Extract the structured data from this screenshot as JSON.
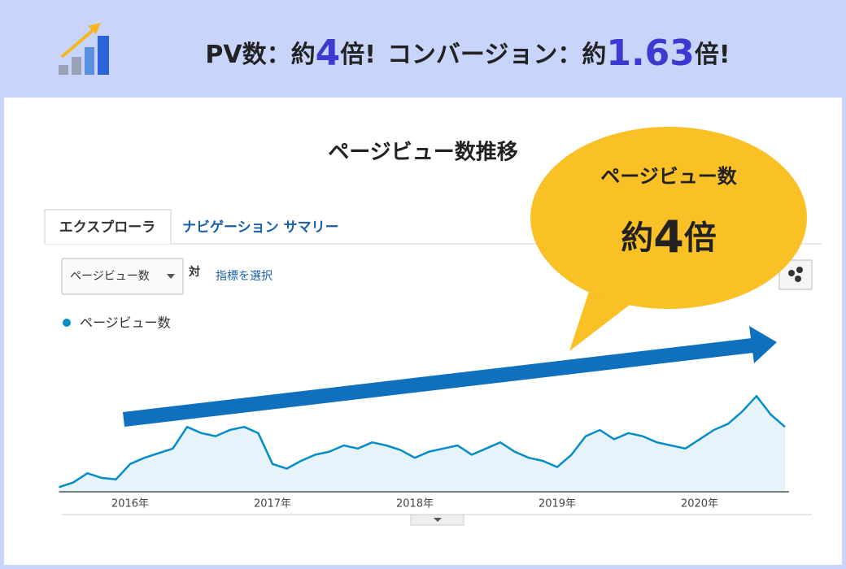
{
  "header": {
    "pv_label": "PV数：約",
    "pv_multiplier": 4,
    "pv_suffix": "倍!",
    "cv_label": "コンバージョン：約",
    "cv_multiplier": 1.63,
    "cv_suffix": "倍!"
  },
  "ui": {
    "tabs": [
      "エクスプローラ",
      "ナビゲーション サマリー"
    ],
    "dropdown": "ページビュー数",
    "vs": "対",
    "select_metric": "指標を選択"
  },
  "callout": {
    "label": "ページビュー数",
    "prefix": "約",
    "multiplier": 4,
    "suffix": "倍"
  },
  "chart_data": {
    "type": "line",
    "title": "ページビュー数推移",
    "categories": [
      null,
      null,
      null,
      null,
      null,
      "2016年",
      null,
      null,
      null,
      null,
      null,
      null,
      null,
      null,
      null,
      "2017年",
      null,
      null,
      null,
      null,
      null,
      null,
      null,
      null,
      null,
      "2018年",
      null,
      null,
      null,
      null,
      null,
      null,
      null,
      null,
      null,
      "2019年",
      null,
      null,
      null,
      null,
      null,
      null,
      null,
      null,
      null,
      "2020年",
      null,
      null,
      null,
      null,
      null,
      null
    ],
    "series": [
      {
        "name": "ページビュー数",
        "color": "#058dc7",
        "values": [
          3,
          6,
          12,
          9,
          8,
          18,
          22,
          25,
          28,
          42,
          38,
          36,
          40,
          42,
          38,
          18,
          15,
          20,
          24,
          26,
          30,
          28,
          32,
          30,
          27,
          22,
          26,
          28,
          30,
          24,
          28,
          32,
          26,
          22,
          20,
          16,
          24,
          36,
          40,
          34,
          38,
          36,
          32,
          30,
          28,
          34,
          40,
          44,
          52,
          62,
          50,
          42
        ]
      }
    ],
    "ylim": [
      0,
      100
    ]
  }
}
